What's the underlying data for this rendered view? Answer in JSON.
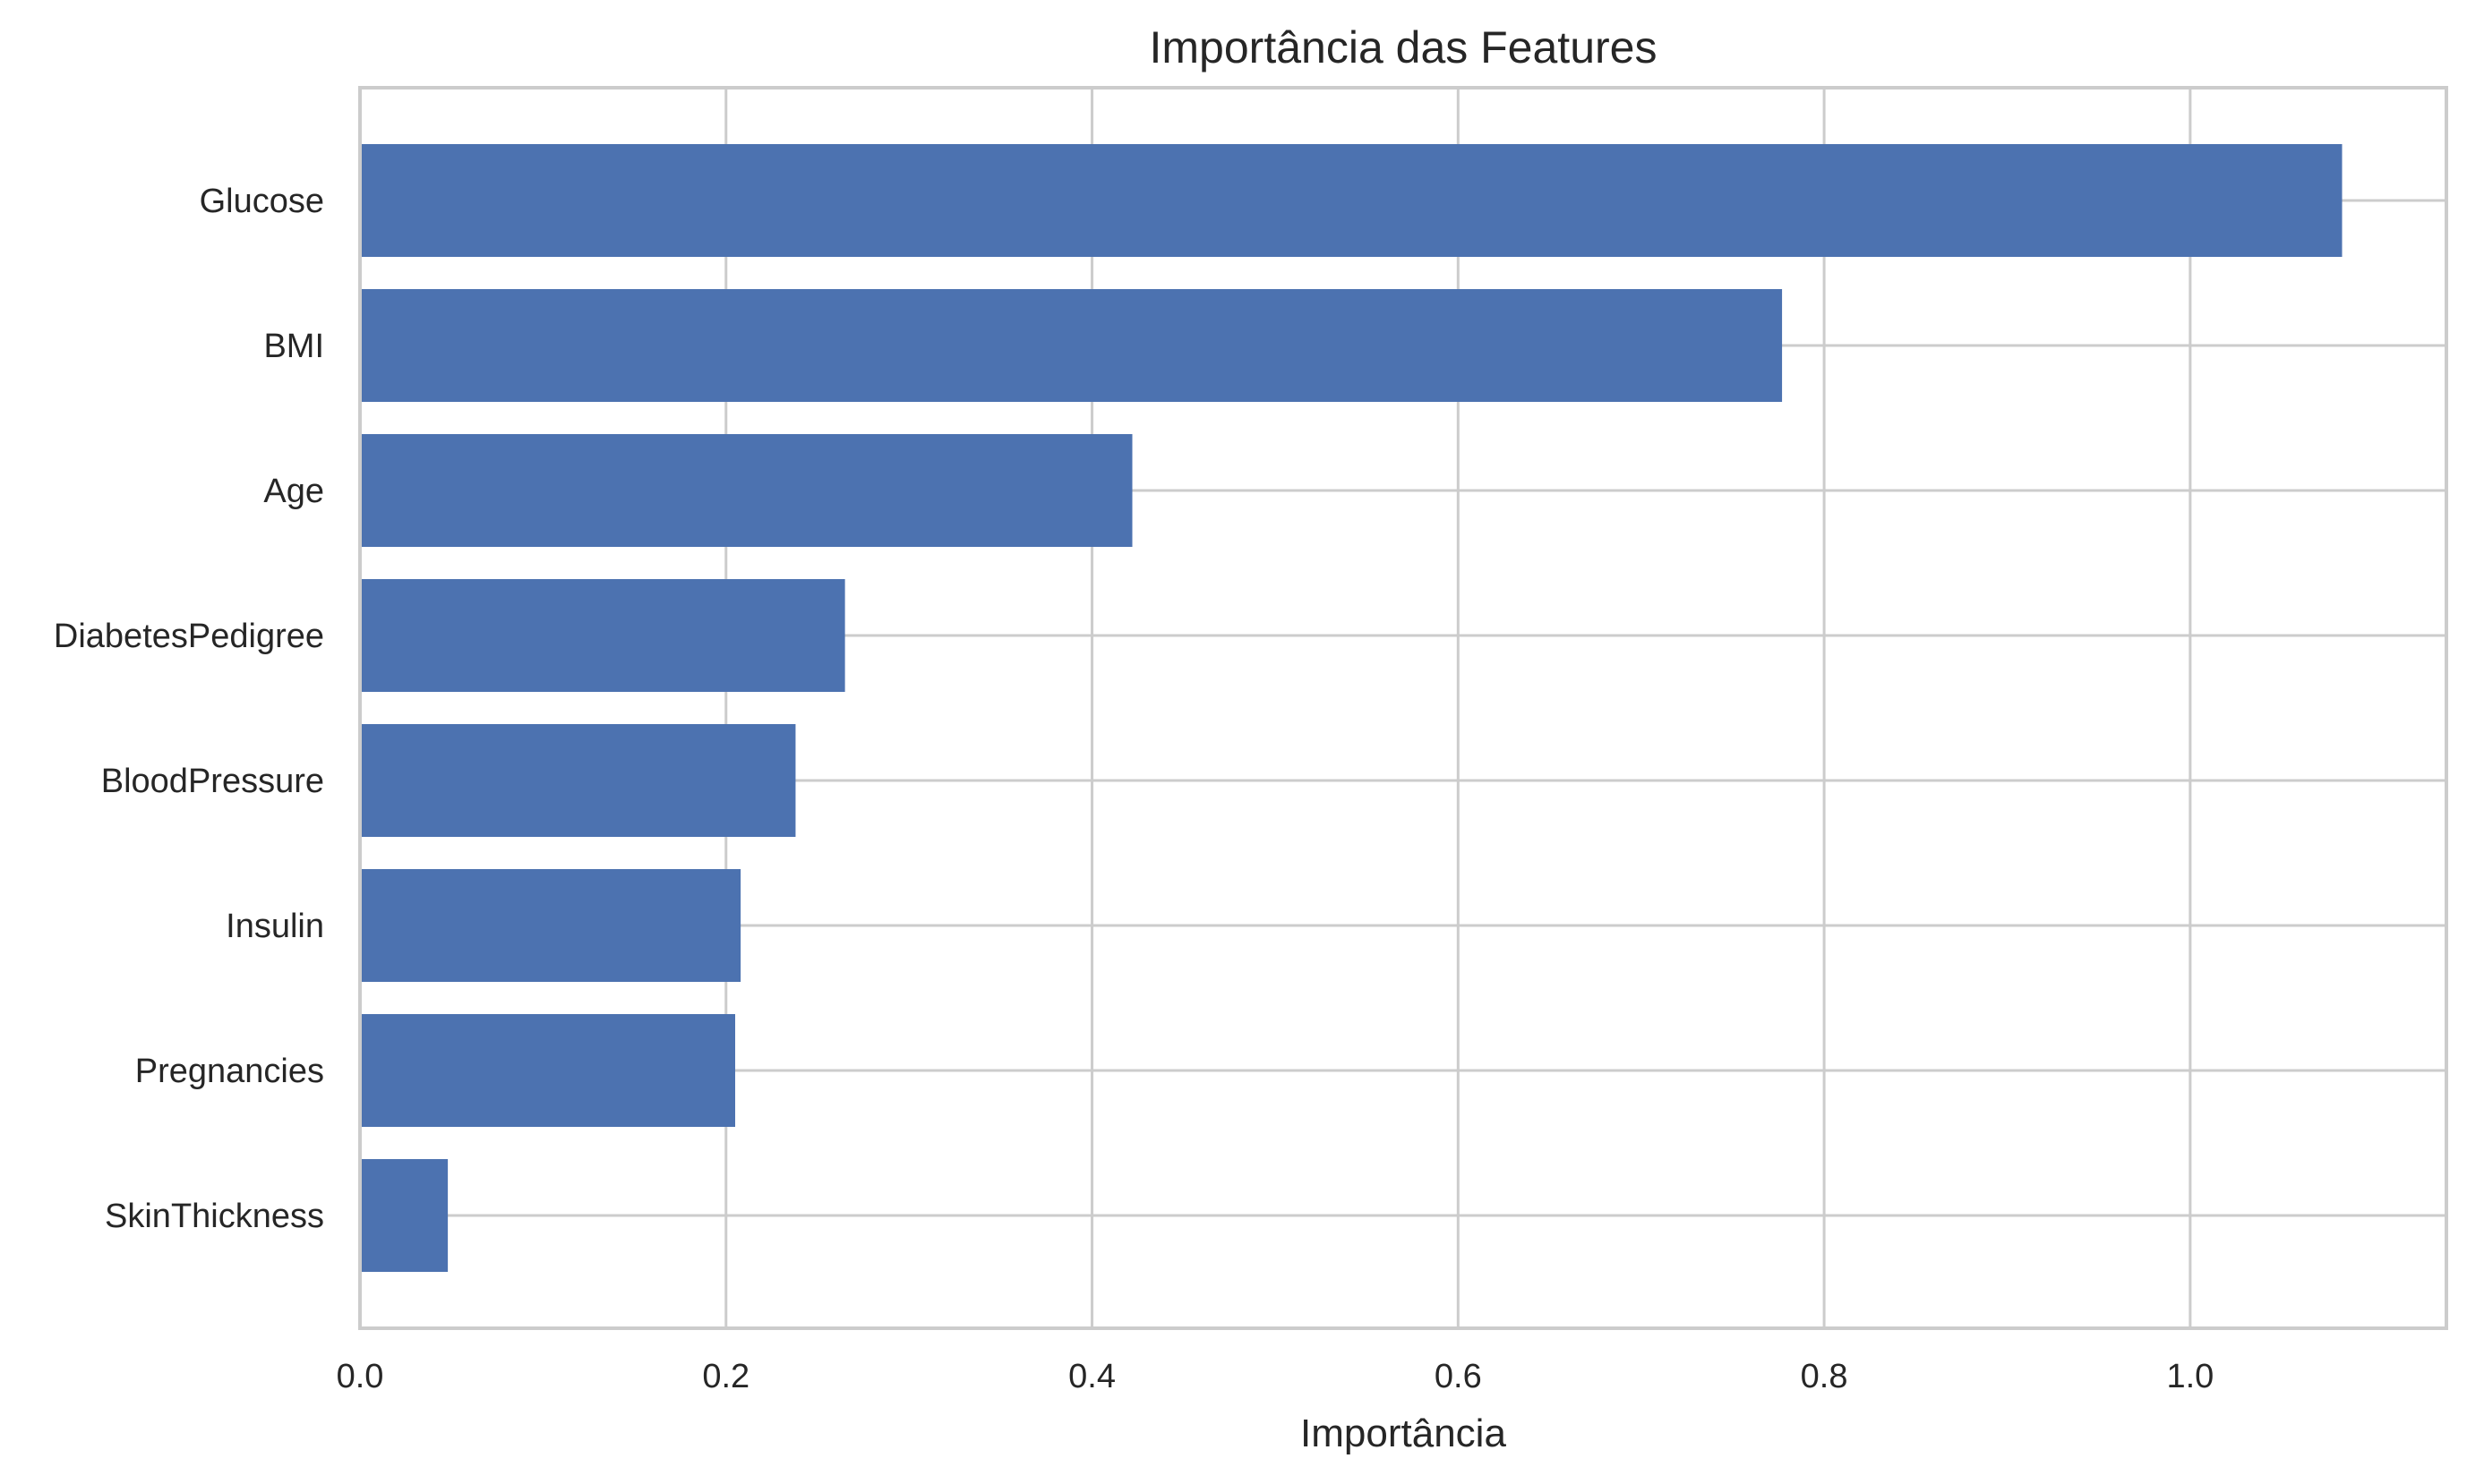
{
  "chart_data": {
    "type": "bar",
    "orientation": "horizontal",
    "title": "Importância das Features",
    "xlabel": "Importância",
    "ylabel": "",
    "categories": [
      "Glucose",
      "BMI",
      "Age",
      "DiabetesPedigree",
      "BloodPressure",
      "Insulin",
      "Pregnancies",
      "SkinThickness"
    ],
    "values": [
      1.083,
      0.777,
      0.422,
      0.265,
      0.238,
      0.208,
      0.205,
      0.048
    ],
    "xlim": [
      0,
      1.14
    ],
    "xticks": [
      0.0,
      0.2,
      0.4,
      0.6,
      0.8,
      1.0
    ],
    "xtick_labels": [
      "0.0",
      "0.2",
      "0.4",
      "0.6",
      "0.8",
      "1.0"
    ],
    "grid": true,
    "legend": "none",
    "colors": {
      "bar": "#4c72b0",
      "grid": "#cccccc",
      "spine": "#cccccc",
      "text": "#262626"
    }
  }
}
